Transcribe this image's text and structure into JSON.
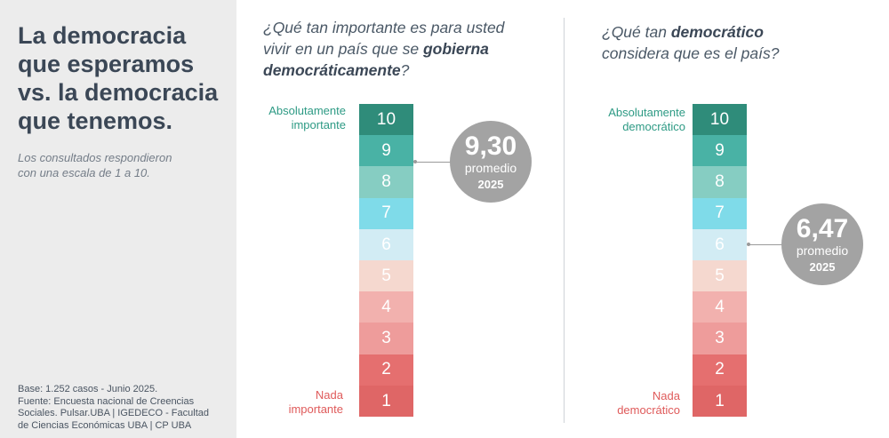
{
  "sidebar": {
    "title": "La democracia\nque esperamos\nvs. la democracia\nque tenemos.",
    "subtitle": "Los consultados respondieron\ncon una escala de 1 a 10.",
    "source": "Base: 1.252 casos - Junio 2025.\nFuente: Encuesta nacional de Creencias\nSociales. Pulsar.UBA | IGEDECO - Facultad\nde Ciencias Económicas UBA | CP UBA"
  },
  "colors": {
    "10": "#2f8c7a",
    "9": "#49b2a5",
    "8": "#86cdc2",
    "7": "#7fdbe9",
    "6": "#d2ecf4",
    "5": "#f5d8cf",
    "4": "#f2b1ae",
    "3": "#ee9c9b",
    "2": "#e56f6f",
    "1": "#df6666"
  },
  "chart_data": [
    {
      "type": "table",
      "question_parts": [
        "¿Qué tan importante es para usted vivir en un país que se ",
        "gobierna democráticamente",
        "?"
      ],
      "scale": [
        10,
        9,
        8,
        7,
        6,
        5,
        4,
        3,
        2,
        1
      ],
      "top_label": "Absolutamente\nimportante",
      "bottom_label": "Nada\nimportante",
      "average": 9.3,
      "average_text": "9,30",
      "average_label": "promedio",
      "year": "2025"
    },
    {
      "type": "table",
      "question_parts": [
        "¿Qué tan ",
        "democrático",
        " considera que es el país?"
      ],
      "scale": [
        10,
        9,
        8,
        7,
        6,
        5,
        4,
        3,
        2,
        1
      ],
      "top_label": "Absolutamente\ndemocrático",
      "bottom_label": "Nada\ndemocrático",
      "average": 6.47,
      "average_text": "6,47",
      "average_label": "promedio",
      "year": "2025"
    }
  ]
}
